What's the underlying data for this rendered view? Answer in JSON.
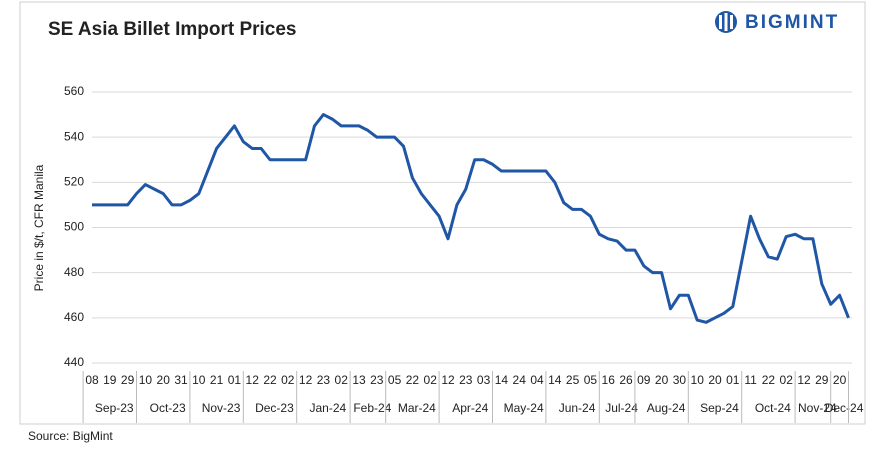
{
  "chart_data": {
    "type": "line",
    "title": "SE Asia Billet Import Prices",
    "logo": "BIGMINT",
    "y_label": "Price in $/t, CFR Manila",
    "source": "Source: BigMint",
    "categories": [
      "08",
      null,
      "19",
      null,
      "29",
      null,
      "10",
      null,
      "20",
      null,
      "31",
      null,
      "10",
      null,
      "21",
      null,
      "01",
      null,
      "12",
      null,
      "22",
      null,
      "02",
      null,
      "12",
      null,
      "23",
      null,
      "02",
      null,
      "13",
      null,
      "23",
      null,
      "05",
      null,
      "22",
      null,
      "02",
      null,
      "12",
      null,
      "23",
      null,
      "03",
      null,
      "14",
      null,
      "24",
      null,
      "04",
      null,
      "14",
      null,
      "25",
      null,
      "05",
      null,
      "16",
      null,
      "26",
      null,
      "09",
      null,
      "20",
      null,
      "30",
      null,
      "10",
      null,
      "20",
      null,
      "01",
      null,
      "11",
      null,
      "22",
      null,
      "02",
      null,
      "12",
      null,
      "29",
      null,
      "20",
      null
    ],
    "x_groups": [
      {
        "label": "Sep-23",
        "size": 6
      },
      {
        "label": "Oct-23",
        "size": 6
      },
      {
        "label": "Nov-23",
        "size": 6
      },
      {
        "label": "Dec-23",
        "size": 6
      },
      {
        "label": "Jan-24",
        "size": 6
      },
      {
        "label": "Feb-24",
        "size": 4
      },
      {
        "label": "Mar-24",
        "size": 6
      },
      {
        "label": "Apr-24",
        "size": 6
      },
      {
        "label": "May-24",
        "size": 6
      },
      {
        "label": "Jun-24",
        "size": 6
      },
      {
        "label": "Jul-24",
        "size": 4
      },
      {
        "label": "Aug-24",
        "size": 6
      },
      {
        "label": "Sep-24",
        "size": 6
      },
      {
        "label": "Oct-24",
        "size": 6
      },
      {
        "label": "Nov-24",
        "size": 4
      },
      {
        "label": "Dec-24",
        "size": 2
      }
    ],
    "series": [
      {
        "name": "SE Asia Billet Import Prices",
        "color": "#1f56a6",
        "values": [
          510,
          510,
          510,
          510,
          510,
          515,
          519,
          517,
          515,
          510,
          510,
          512,
          515,
          525,
          535,
          540,
          545,
          538,
          535,
          535,
          530,
          530,
          530,
          530,
          530,
          545,
          550,
          548,
          545,
          545,
          545,
          543,
          540,
          540,
          540,
          536,
          522,
          515,
          510,
          505,
          495,
          510,
          517,
          530,
          530,
          528,
          525,
          525,
          525,
          525,
          525,
          525,
          520,
          511,
          508,
          508,
          505,
          497,
          495,
          494,
          490,
          490,
          483,
          480,
          480,
          464,
          470,
          470,
          459,
          458,
          460,
          462,
          465,
          485,
          505,
          495,
          487,
          486,
          496,
          497,
          495,
          495,
          475,
          466,
          470,
          460
        ]
      }
    ],
    "ylim": [
      440,
      560
    ],
    "yticks": [
      440,
      460,
      480,
      500,
      520,
      540,
      560
    ],
    "grid": true
  }
}
